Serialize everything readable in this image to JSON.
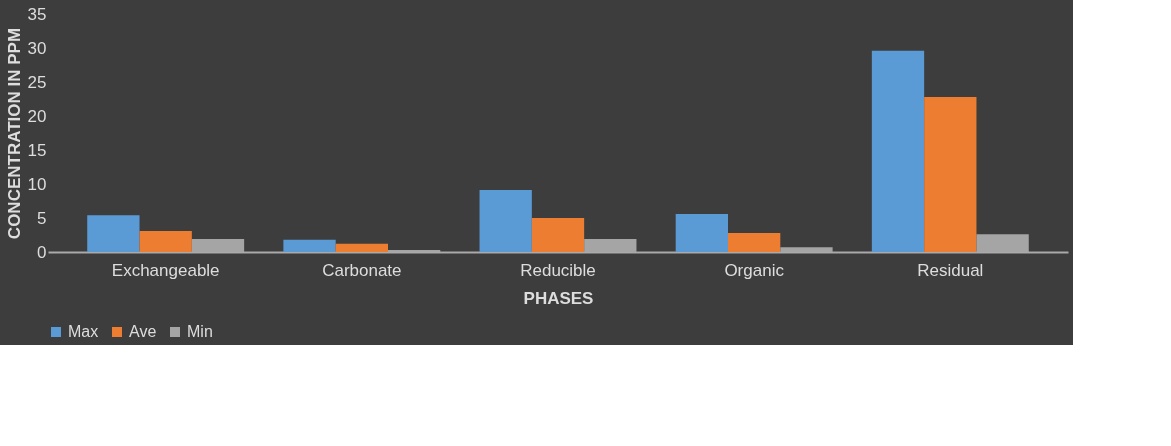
{
  "chart_data": {
    "type": "bar",
    "xlabel": "PHASES",
    "ylabel": "CONCENTRATION IN PPM",
    "categories": [
      "Exchangeable",
      "Carbonate",
      "Reducible",
      "Organic",
      "Residual"
    ],
    "series": [
      {
        "name": "Max",
        "color": "#5b9bd5",
        "values": [
          5.4,
          1.8,
          9.1,
          5.6,
          29.6
        ]
      },
      {
        "name": "Ave",
        "color": "#ed7d31",
        "values": [
          3.1,
          1.2,
          5.0,
          2.8,
          22.8
        ]
      },
      {
        "name": "Min",
        "color": "#a5a5a5",
        "values": [
          1.9,
          0.3,
          1.9,
          0.7,
          2.6
        ]
      }
    ],
    "ylim": [
      0,
      35
    ],
    "yticks": [
      0,
      5,
      10,
      15,
      20,
      25,
      30,
      35
    ],
    "grid": false,
    "legend": "bottom"
  }
}
